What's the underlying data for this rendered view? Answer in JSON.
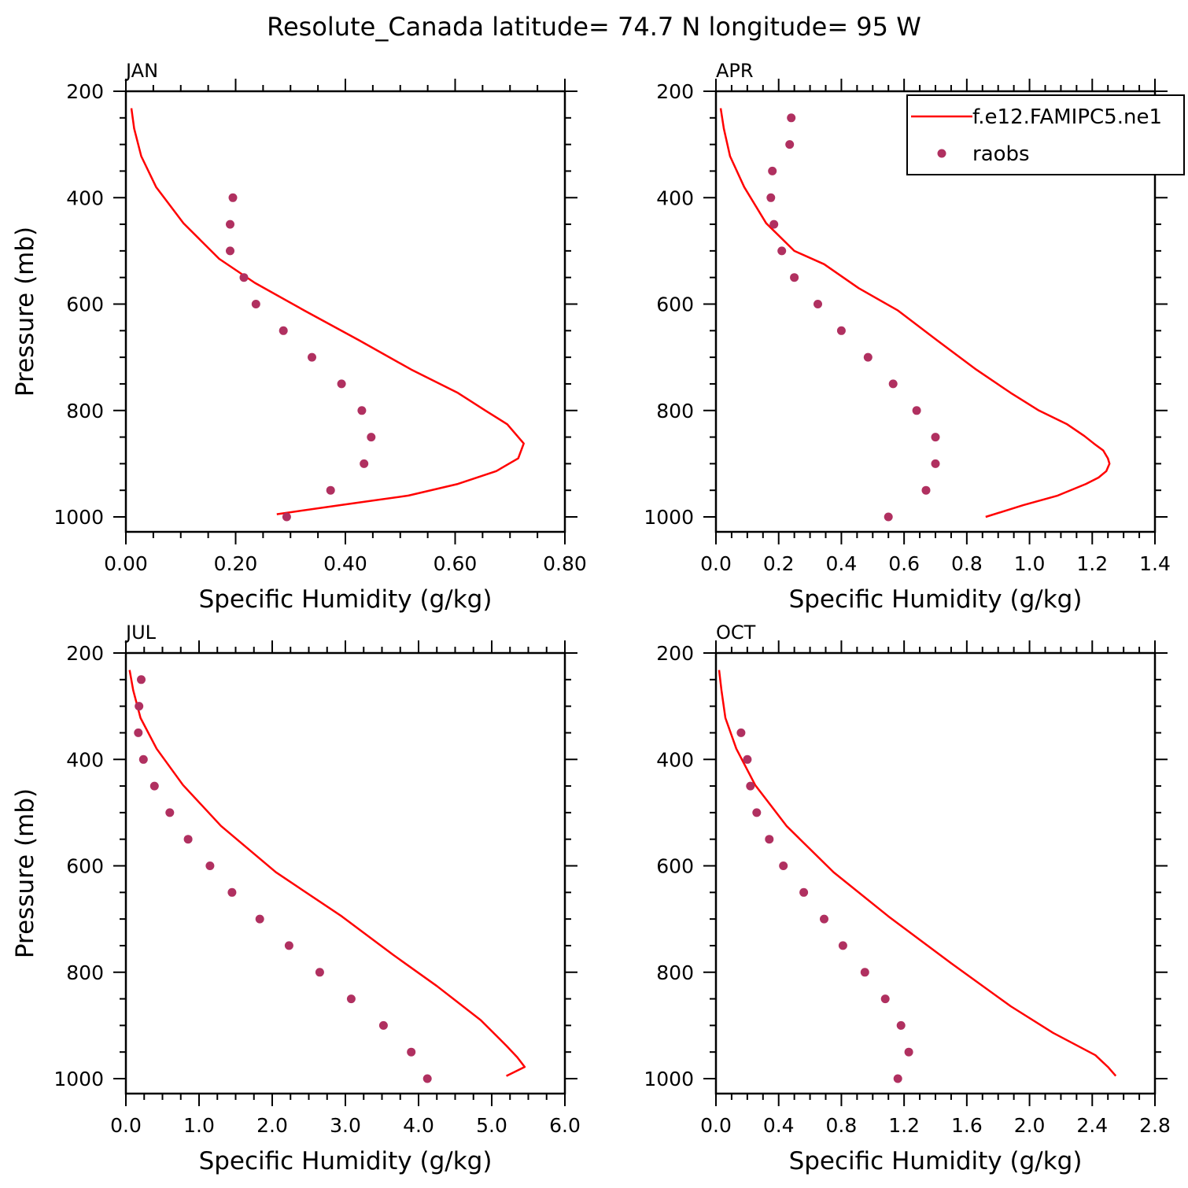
{
  "figure": {
    "title": "Resolute_Canada  latitude= 74.7 N longitude= 95 W"
  },
  "colors": {
    "model": "#ff0000",
    "obs": "#b03060",
    "axis": "#000000"
  },
  "legend": {
    "placement": "top-right of APR panel",
    "entries": [
      {
        "label": "f.e12.FAMIPC5.ne1",
        "kind": "line"
      },
      {
        "label": "raobs",
        "kind": "marker"
      }
    ]
  },
  "chart_data": [
    {
      "type": "line",
      "panel": "JAN",
      "title": "JAN",
      "xlabel": "Specific Humidity (g/kg)",
      "ylabel": "Pressure (mb)",
      "xlim": [
        0,
        0.8
      ],
      "xticks": [
        "0.00",
        "0.20",
        "0.40",
        "0.60",
        "0.80"
      ],
      "ylim": [
        200,
        1000
      ],
      "yticks": [
        "200",
        "400",
        "600",
        "800",
        "1000"
      ],
      "y_inverted": true,
      "series": [
        {
          "name": "f.e12.FAMIPC5.ne1",
          "style": "line",
          "x": [
            0.01,
            0.015,
            0.028,
            0.055,
            0.105,
            0.17,
            0.235,
            0.325,
            0.425,
            0.52,
            0.605,
            0.655,
            0.695,
            0.725,
            0.715,
            0.675,
            0.605,
            0.515,
            0.39,
            0.275
          ],
          "y": [
            232,
            270,
            322,
            380,
            448,
            515,
            560,
            612,
            668,
            723,
            767,
            800,
            826,
            862,
            890,
            914,
            938,
            960,
            978,
            995
          ]
        },
        {
          "name": "raobs",
          "style": "marker",
          "x": [
            0.195,
            0.19,
            0.19,
            0.215,
            0.237,
            0.287,
            0.339,
            0.393,
            0.43,
            0.447,
            0.434,
            0.373,
            0.293
          ],
          "y": [
            400,
            450,
            500,
            550,
            600,
            650,
            700,
            750,
            800,
            850,
            900,
            950,
            1000
          ]
        }
      ]
    },
    {
      "type": "line",
      "panel": "APR",
      "title": "APR",
      "xlabel": "Specific Humidity (g/kg)",
      "ylabel": "",
      "xlim": [
        0,
        1.4
      ],
      "xticks": [
        "0.0",
        "0.2",
        "0.4",
        "0.6",
        "0.8",
        "1.0",
        "1.2",
        "1.4"
      ],
      "ylim": [
        200,
        1000
      ],
      "yticks": [
        "200",
        "400",
        "600",
        "800",
        "1000"
      ],
      "y_inverted": true,
      "series": [
        {
          "name": "f.e12.FAMIPC5.ne1",
          "style": "line",
          "x": [
            0.015,
            0.025,
            0.045,
            0.09,
            0.16,
            0.25,
            0.345,
            0.455,
            0.58,
            0.705,
            0.83,
            0.94,
            1.03,
            1.12,
            1.175,
            1.205,
            1.235,
            1.25,
            1.255,
            1.245,
            1.22,
            1.18,
            1.09,
            0.98,
            0.86
          ],
          "y": [
            232,
            270,
            322,
            380,
            448,
            500,
            525,
            570,
            612,
            668,
            723,
            767,
            800,
            826,
            848,
            862,
            875,
            890,
            900,
            914,
            926,
            938,
            960,
            978,
            1000
          ]
        },
        {
          "name": "raobs",
          "style": "marker",
          "x": [
            0.24,
            0.235,
            0.18,
            0.175,
            0.185,
            0.21,
            0.25,
            0.325,
            0.4,
            0.485,
            0.565,
            0.64,
            0.7,
            0.7,
            0.67,
            0.55
          ],
          "y": [
            250,
            300,
            350,
            400,
            450,
            500,
            550,
            600,
            650,
            700,
            750,
            800,
            850,
            900,
            950,
            1000
          ]
        }
      ]
    },
    {
      "type": "line",
      "panel": "JUL",
      "title": "JUL",
      "xlabel": "Specific Humidity (g/kg)",
      "ylabel": "Pressure (mb)",
      "xlim": [
        0,
        6
      ],
      "xticks": [
        "0.0",
        "1.0",
        "2.0",
        "3.0",
        "4.0",
        "5.0",
        "6.0"
      ],
      "ylim": [
        200,
        1000
      ],
      "yticks": [
        "200",
        "400",
        "600",
        "800",
        "1000"
      ],
      "y_inverted": true,
      "series": [
        {
          "name": "f.e12.FAMIPC5.ne1",
          "style": "line",
          "x": [
            0.05,
            0.1,
            0.2,
            0.42,
            0.78,
            1.3,
            2.05,
            2.95,
            3.65,
            4.25,
            4.85,
            5.2,
            5.35,
            5.45,
            5.2
          ],
          "y": [
            232,
            270,
            322,
            380,
            448,
            525,
            612,
            695,
            767,
            826,
            890,
            938,
            960,
            978,
            995
          ]
        },
        {
          "name": "raobs",
          "style": "marker",
          "x": [
            0.21,
            0.18,
            0.17,
            0.24,
            0.39,
            0.6,
            0.85,
            1.15,
            1.45,
            1.83,
            2.23,
            2.65,
            3.08,
            3.52,
            3.9,
            4.12
          ],
          "y": [
            250,
            300,
            350,
            400,
            450,
            500,
            550,
            600,
            650,
            700,
            750,
            800,
            850,
            900,
            950,
            1000
          ]
        }
      ]
    },
    {
      "type": "line",
      "panel": "OCT",
      "title": "OCT",
      "xlabel": "Specific Humidity (g/kg)",
      "ylabel": "",
      "xlim": [
        0,
        2.8
      ],
      "xticks": [
        "0.0",
        "0.4",
        "0.8",
        "1.2",
        "1.6",
        "2.0",
        "2.4",
        "2.8"
      ],
      "ylim": [
        200,
        1000
      ],
      "yticks": [
        "200",
        "400",
        "600",
        "800",
        "1000"
      ],
      "y_inverted": true,
      "series": [
        {
          "name": "f.e12.FAMIPC5.ne1",
          "style": "line",
          "x": [
            0.02,
            0.035,
            0.06,
            0.13,
            0.25,
            0.45,
            0.75,
            1.1,
            1.5,
            1.88,
            2.15,
            2.42,
            2.5,
            2.55
          ],
          "y": [
            232,
            270,
            322,
            380,
            448,
            525,
            612,
            695,
            783,
            864,
            914,
            956,
            978,
            995
          ]
        },
        {
          "name": "raobs",
          "style": "marker",
          "x": [
            0.16,
            0.2,
            0.22,
            0.26,
            0.34,
            0.43,
            0.56,
            0.69,
            0.81,
            0.95,
            1.08,
            1.18,
            1.23,
            1.16
          ],
          "y": [
            350,
            400,
            450,
            500,
            550,
            600,
            650,
            700,
            750,
            800,
            850,
            900,
            950,
            1000
          ]
        }
      ]
    }
  ]
}
